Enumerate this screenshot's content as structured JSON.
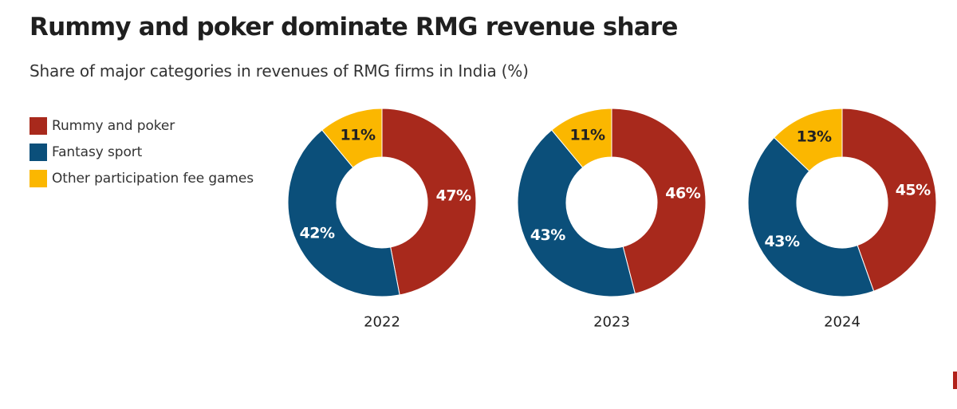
{
  "title": "Rummy and poker dominate RMG revenue share",
  "subtitle": "Share of major categories in revenues of RMG firms in India (%)",
  "colors": {
    "rummy": "#a8291c",
    "fantasy": "#0b4f7a",
    "other": "#fbb700",
    "label_light": "#ffffff",
    "label_dark": "#222222",
    "separator": "#ffffff",
    "corner_mark": "#b2211a"
  },
  "legend": [
    {
      "label": "Rummy and poker",
      "color": "#a8291c"
    },
    {
      "label": "Fantasy sport",
      "color": "#0b4f7a"
    },
    {
      "label": "Other participation fee games",
      "color": "#fbb700"
    }
  ],
  "chart_data": {
    "type": "pie",
    "variant": "donut",
    "title": "Rummy and poker dominate RMG revenue share",
    "subtitle": "Share of major categories in revenues of RMG firms in India (%)",
    "series_names": [
      "Rummy and poker",
      "Fantasy sport",
      "Other participation fee games"
    ],
    "legend_position": "left",
    "charts": [
      {
        "year": "2022",
        "slices": [
          {
            "name": "Rummy and poker",
            "value": 47,
            "label": "47%"
          },
          {
            "name": "Fantasy sport",
            "value": 42,
            "label": "42%"
          },
          {
            "name": "Other participation fee games",
            "value": 11,
            "label": "11%"
          }
        ]
      },
      {
        "year": "2023",
        "slices": [
          {
            "name": "Rummy and poker",
            "value": 46,
            "label": "46%"
          },
          {
            "name": "Fantasy sport",
            "value": 43,
            "label": "43%"
          },
          {
            "name": "Other participation fee games",
            "value": 11,
            "label": "11%"
          }
        ]
      },
      {
        "year": "2024",
        "slices": [
          {
            "name": "Rummy and poker",
            "value": 45,
            "label": "45%"
          },
          {
            "name": "Fantasy sport",
            "value": 43,
            "label": "43%"
          },
          {
            "name": "Other participation fee games",
            "value": 13,
            "label": "13%"
          }
        ]
      }
    ]
  }
}
